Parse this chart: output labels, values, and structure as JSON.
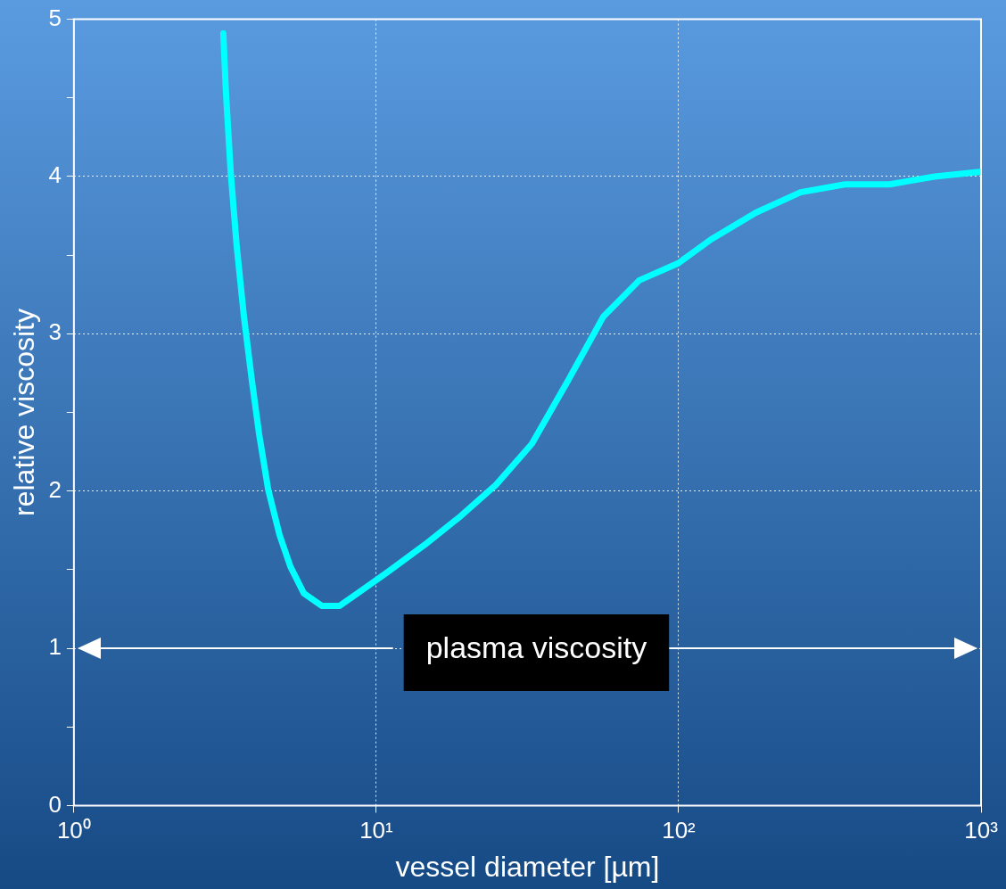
{
  "chart_data": {
    "type": "line",
    "xlabel": "vessel diameter [µm]",
    "ylabel": "relative viscosity",
    "log": "x",
    "grid": true,
    "marker": "none",
    "line_style": "solid",
    "color": "#00ffff",
    "x": [
      3.12,
      3.18,
      3.3,
      3.45,
      3.65,
      3.88,
      4.1,
      4.39,
      4.79,
      5.2,
      5.76,
      6.6,
      7.57,
      8.97,
      11,
      14.5,
      19,
      24.9,
      32.7,
      43,
      56.4,
      74.1,
      100,
      128,
      180,
      253,
      355,
      499,
      702,
      990
    ],
    "values": [
      4.91,
      4.55,
      4.03,
      3.57,
      3.11,
      2.7,
      2.36,
      2.01,
      1.72,
      1.52,
      1.35,
      1.27,
      1.27,
      1.37,
      1.49,
      1.66,
      1.84,
      2.04,
      2.3,
      2.7,
      3.11,
      3.34,
      3.45,
      3.6,
      3.77,
      3.9,
      3.95,
      3.95,
      4.0,
      4.03
    ],
    "xlim": [
      1,
      1000
    ],
    "ylim": [
      0,
      5
    ],
    "xticks": [
      {
        "value": 1,
        "label": "10⁰"
      },
      {
        "value": 10,
        "label": "10¹"
      },
      {
        "value": 100,
        "label": "10²"
      },
      {
        "value": 1000,
        "label": "10³"
      }
    ],
    "yticks": [
      0,
      {
        "value": 0.5,
        "label": null
      },
      1,
      {
        "value": 1.5,
        "label": null
      },
      2,
      {
        "value": 2.5,
        "label": null
      },
      3,
      {
        "value": 3.5,
        "label": null
      },
      4,
      {
        "value": 4.5,
        "label": null
      },
      5
    ],
    "ref_lines": [
      {
        "axis": "y",
        "value": 1,
        "label": "plasma viscosity",
        "color": "#ffffff"
      }
    ]
  }
}
